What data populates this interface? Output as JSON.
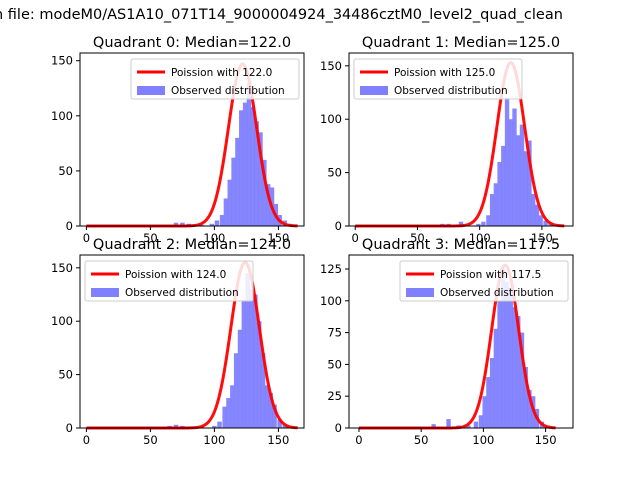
{
  "suptitle": "n file: modeM0/AS1A10_071T14_9000004924_34486cztM0_level2_quad_clean",
  "colors": {
    "model": "#ff0000",
    "observed": "#8080ff",
    "axis": "#000000"
  },
  "chart_data": [
    {
      "type": "bar",
      "title": "Quadrant 0: Median=122.0",
      "legend": [
        "Poission with 122.0",
        "Observed distribution"
      ],
      "legend_loc": "top-right",
      "xlim": [
        -5,
        170
      ],
      "ylim": [
        0,
        157
      ],
      "xticks": [
        0,
        50,
        100,
        150
      ],
      "yticks": [
        0,
        50,
        100,
        150
      ],
      "model": {
        "mean": 122.0,
        "peak": 147,
        "x_start": 0,
        "x_end": 165
      },
      "bar_width": 3.5,
      "bars": [
        {
          "x": 57,
          "y": 1
        },
        {
          "x": 62,
          "y": 1
        },
        {
          "x": 70,
          "y": 3
        },
        {
          "x": 75,
          "y": 3
        },
        {
          "x": 80,
          "y": 2
        },
        {
          "x": 90,
          "y": 1
        },
        {
          "x": 98,
          "y": 2
        },
        {
          "x": 102,
          "y": 5
        },
        {
          "x": 106,
          "y": 10
        },
        {
          "x": 109,
          "y": 25
        },
        {
          "x": 112,
          "y": 42
        },
        {
          "x": 115,
          "y": 62
        },
        {
          "x": 118,
          "y": 80
        },
        {
          "x": 121,
          "y": 105
        },
        {
          "x": 124,
          "y": 112
        },
        {
          "x": 127,
          "y": 130
        },
        {
          "x": 130,
          "y": 108
        },
        {
          "x": 133,
          "y": 95
        },
        {
          "x": 136,
          "y": 85
        },
        {
          "x": 139,
          "y": 60
        },
        {
          "x": 142,
          "y": 38
        },
        {
          "x": 145,
          "y": 35
        },
        {
          "x": 148,
          "y": 20
        },
        {
          "x": 151,
          "y": 10
        },
        {
          "x": 155,
          "y": 5
        },
        {
          "x": 159,
          "y": 2
        }
      ]
    },
    {
      "type": "bar",
      "title": "Quadrant 1: Median=125.0",
      "legend": [
        "Poission with 125.0",
        "Observed distribution"
      ],
      "legend_loc": "top-left",
      "xlim": [
        -5,
        175
      ],
      "ylim": [
        0,
        162
      ],
      "xticks": [
        0,
        50,
        100,
        150
      ],
      "yticks": [
        0,
        50,
        100,
        150
      ],
      "model": {
        "mean": 125.0,
        "peak": 153,
        "x_start": 0,
        "x_end": 168
      },
      "bar_width": 3.5,
      "bars": [
        {
          "x": 70,
          "y": 2
        },
        {
          "x": 75,
          "y": 2
        },
        {
          "x": 85,
          "y": 4
        },
        {
          "x": 99,
          "y": 2
        },
        {
          "x": 103,
          "y": 4
        },
        {
          "x": 107,
          "y": 10
        },
        {
          "x": 110,
          "y": 30
        },
        {
          "x": 113,
          "y": 40
        },
        {
          "x": 116,
          "y": 60
        },
        {
          "x": 119,
          "y": 75
        },
        {
          "x": 122,
          "y": 120
        },
        {
          "x": 125,
          "y": 100
        },
        {
          "x": 128,
          "y": 110
        },
        {
          "x": 131,
          "y": 85
        },
        {
          "x": 134,
          "y": 95
        },
        {
          "x": 137,
          "y": 70
        },
        {
          "x": 140,
          "y": 80
        },
        {
          "x": 143,
          "y": 30
        },
        {
          "x": 146,
          "y": 20
        },
        {
          "x": 149,
          "y": 10
        },
        {
          "x": 153,
          "y": 5
        },
        {
          "x": 157,
          "y": 2
        }
      ]
    },
    {
      "type": "bar",
      "title": "Quadrant 2: Median=124.0",
      "legend": [
        "Poission with 124.0",
        "Observed distribution"
      ],
      "legend_loc": "top-left",
      "xlim": [
        -5,
        170
      ],
      "ylim": [
        0,
        162
      ],
      "xticks": [
        0,
        50,
        100,
        150
      ],
      "yticks": [
        0,
        50,
        100,
        150
      ],
      "model": {
        "mean": 124.0,
        "peak": 155,
        "x_start": 0,
        "x_end": 165
      },
      "bar_width": 3.5,
      "bars": [
        {
          "x": 65,
          "y": 2
        },
        {
          "x": 70,
          "y": 3
        },
        {
          "x": 75,
          "y": 2
        },
        {
          "x": 90,
          "y": 1
        },
        {
          "x": 100,
          "y": 2
        },
        {
          "x": 104,
          "y": 6
        },
        {
          "x": 108,
          "y": 20
        },
        {
          "x": 111,
          "y": 28
        },
        {
          "x": 114,
          "y": 40
        },
        {
          "x": 117,
          "y": 70
        },
        {
          "x": 120,
          "y": 92
        },
        {
          "x": 123,
          "y": 120
        },
        {
          "x": 126,
          "y": 145
        },
        {
          "x": 129,
          "y": 130
        },
        {
          "x": 132,
          "y": 125
        },
        {
          "x": 135,
          "y": 100
        },
        {
          "x": 138,
          "y": 70
        },
        {
          "x": 141,
          "y": 40
        },
        {
          "x": 144,
          "y": 33
        },
        {
          "x": 147,
          "y": 22
        },
        {
          "x": 151,
          "y": 8
        },
        {
          "x": 155,
          "y": 3
        }
      ]
    },
    {
      "type": "bar",
      "title": "Quadrant 3: Median=117.5",
      "legend": [
        "Poission with 117.5",
        "Observed distribution"
      ],
      "legend_loc": "top-right",
      "xlim": [
        -8,
        172
      ],
      "ylim": [
        0,
        136
      ],
      "xticks": [
        0,
        50,
        100,
        150
      ],
      "yticks": [
        0,
        25,
        50,
        75,
        100,
        125
      ],
      "model": {
        "mean": 117.5,
        "peak": 128,
        "x_start": 0,
        "x_end": 158
      },
      "bar_width": 3.5,
      "bars": [
        {
          "x": 55,
          "y": 1
        },
        {
          "x": 60,
          "y": 3
        },
        {
          "x": 65,
          "y": 1
        },
        {
          "x": 72,
          "y": 7
        },
        {
          "x": 80,
          "y": 2
        },
        {
          "x": 88,
          "y": 2
        },
        {
          "x": 94,
          "y": 5
        },
        {
          "x": 98,
          "y": 10
        },
        {
          "x": 101,
          "y": 25
        },
        {
          "x": 104,
          "y": 40
        },
        {
          "x": 107,
          "y": 55
        },
        {
          "x": 110,
          "y": 78
        },
        {
          "x": 113,
          "y": 100
        },
        {
          "x": 116,
          "y": 125
        },
        {
          "x": 119,
          "y": 115
        },
        {
          "x": 122,
          "y": 110
        },
        {
          "x": 125,
          "y": 95
        },
        {
          "x": 128,
          "y": 88
        },
        {
          "x": 131,
          "y": 75
        },
        {
          "x": 134,
          "y": 48
        },
        {
          "x": 137,
          "y": 30
        },
        {
          "x": 140,
          "y": 25
        },
        {
          "x": 143,
          "y": 15
        },
        {
          "x": 147,
          "y": 5
        },
        {
          "x": 152,
          "y": 2
        }
      ]
    }
  ]
}
